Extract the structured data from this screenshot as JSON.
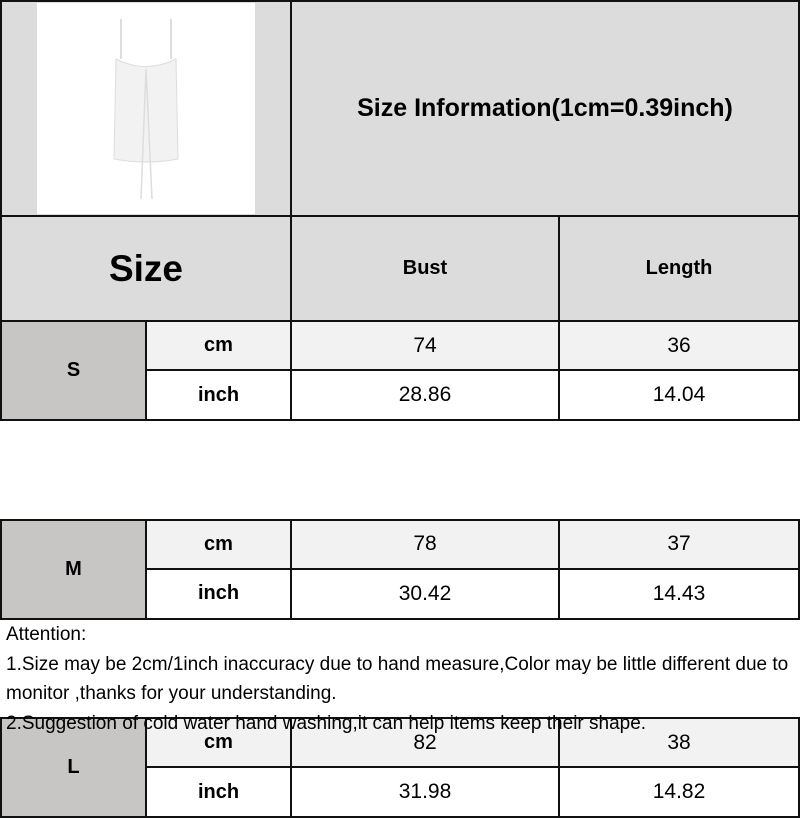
{
  "title": "Size Information(1cm=0.39inch)",
  "header": {
    "size": "Size",
    "cols": [
      "Bust",
      "Length"
    ]
  },
  "rows": [
    {
      "size": "S",
      "cm": [
        "74",
        "36"
      ],
      "inch": [
        "28.86",
        "14.04"
      ]
    },
    {
      "size": "M",
      "cm": [
        "78",
        "37"
      ],
      "inch": [
        "30.42",
        "14.43"
      ]
    },
    {
      "size": "L",
      "cm": [
        "82",
        "38"
      ],
      "inch": [
        "31.98",
        "14.82"
      ]
    }
  ],
  "units": {
    "cm": "cm",
    "inch": "inch"
  },
  "notes": [
    "Attention:",
    "1.Size may be 2cm/1inch inaccuracy due to hand measure,Color may be little different due to monitor ,thanks for your understanding.",
    "2.Suggestion of cold water hand washing,it can help items keep their shape."
  ],
  "colors": {
    "header_gray": "#dcdcdc",
    "size_gray": "#c8c5c5",
    "cm_row": "#f2f2f2"
  }
}
